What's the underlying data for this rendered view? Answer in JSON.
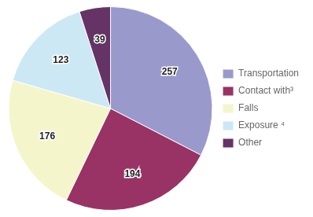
{
  "chart_data": {
    "type": "pie",
    "categories": [
      "Transportation",
      "Contact with³",
      "Falls",
      "Exposure ⁴",
      "Other"
    ],
    "values": [
      257,
      194,
      176,
      123,
      39
    ],
    "colors": [
      "#9999cc",
      "#993366",
      "#f5f5cc",
      "#cce8f4",
      "#663366"
    ],
    "data_labels": true,
    "legend": "right"
  }
}
